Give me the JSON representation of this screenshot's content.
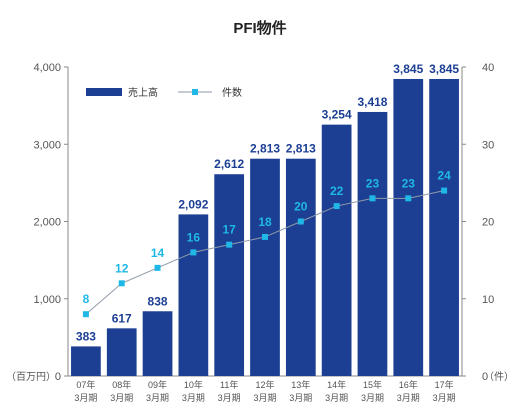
{
  "chart_data": {
    "type": "bar",
    "title": "PFI物件",
    "categories": [
      [
        "07年",
        "3月期"
      ],
      [
        "08年",
        "3月期"
      ],
      [
        "09年",
        "3月期"
      ],
      [
        "10年",
        "3月期"
      ],
      [
        "11年",
        "3月期"
      ],
      [
        "12年",
        "3月期"
      ],
      [
        "13年",
        "3月期"
      ],
      [
        "14年",
        "3月期"
      ],
      [
        "15年",
        "3月期"
      ],
      [
        "16年",
        "3月期"
      ],
      [
        "17年",
        "3月期"
      ]
    ],
    "series": [
      {
        "name": "売上高",
        "type": "bar",
        "axis": "left",
        "color": "#1c3f94",
        "values": [
          383,
          617,
          838,
          2092,
          2612,
          2813,
          2813,
          3254,
          3418,
          3845,
          3845
        ],
        "labels": [
          "383",
          "617",
          "838",
          "2,092",
          "2,612",
          "2,813",
          "2,813",
          "3,254",
          "3,418",
          "3,845",
          "3,845"
        ]
      },
      {
        "name": "件数",
        "type": "line",
        "axis": "right",
        "color": "#1fb8e6",
        "line_color": "#8f9aa8",
        "values": [
          8,
          12,
          14,
          16,
          17,
          18,
          20,
          22,
          23,
          23,
          24
        ],
        "labels": [
          "8",
          "12",
          "14",
          "16",
          "17",
          "18",
          "20",
          "22",
          "23",
          "23",
          "24"
        ]
      }
    ],
    "left_axis": {
      "unit": "（百万円）",
      "ylim": [
        0,
        4000
      ],
      "ticks": [
        0,
        1000,
        2000,
        3000,
        4000
      ],
      "tick_labels": [
        "0",
        "1,000",
        "2,000",
        "3,000",
        "4,000"
      ]
    },
    "right_axis": {
      "unit": "（件）",
      "ylim": [
        0,
        40
      ],
      "ticks": [
        0,
        10,
        20,
        30,
        40
      ],
      "tick_labels": [
        "0",
        "10",
        "20",
        "30",
        "40"
      ]
    },
    "grid": false,
    "legend_position": "top-left"
  }
}
